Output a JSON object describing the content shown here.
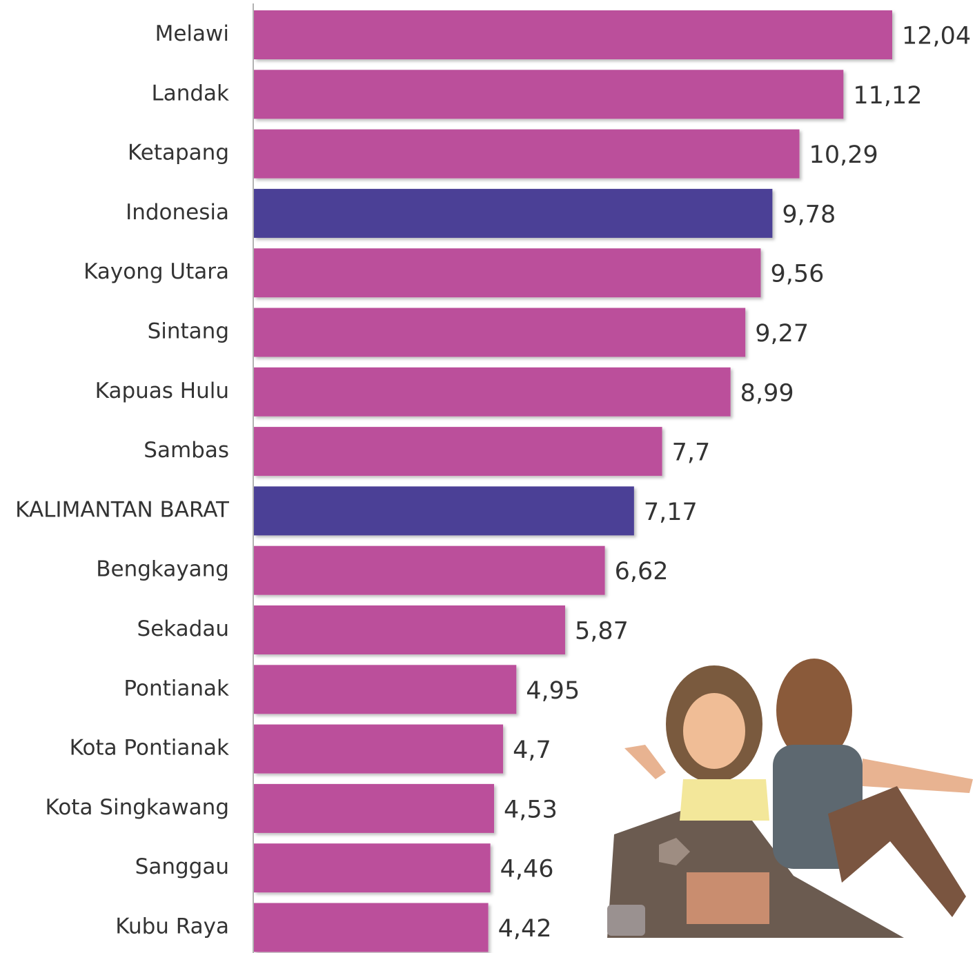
{
  "chart_data": {
    "type": "bar",
    "orientation": "horizontal",
    "categories": [
      "Melawi",
      "Landak",
      "Ketapang",
      "Indonesia",
      "Kayong Utara",
      "Sintang",
      "Kapuas Hulu",
      "Sambas",
      "KALIMANTAN BARAT",
      "Bengkayang",
      "Sekadau",
      "Pontianak",
      "Kota Pontianak",
      "Kota Singkawang",
      "Sanggau",
      "Kubu Raya"
    ],
    "values": [
      12.04,
      11.12,
      10.29,
      9.78,
      9.56,
      9.27,
      8.99,
      7.7,
      7.17,
      6.62,
      5.87,
      4.95,
      4.7,
      4.53,
      4.46,
      4.42
    ],
    "value_labels": [
      "12,04",
      "11,12",
      "10,29",
      "9,78",
      "9,56",
      "9,27",
      "8,99",
      "7,7",
      "7,17",
      "6,62",
      "5,87",
      "4,95",
      "4,7",
      "4,53",
      "4,46",
      "4,42"
    ],
    "colors": [
      "#bb509b",
      "#bb509b",
      "#bb509b",
      "#4c3f96",
      "#bb509b",
      "#bb509b",
      "#bb509b",
      "#bb509b",
      "#4c3f96",
      "#bb509b",
      "#bb509b",
      "#bb509b",
      "#bb509b",
      "#bb509b",
      "#bb509b",
      "#bb509b"
    ]
  }
}
